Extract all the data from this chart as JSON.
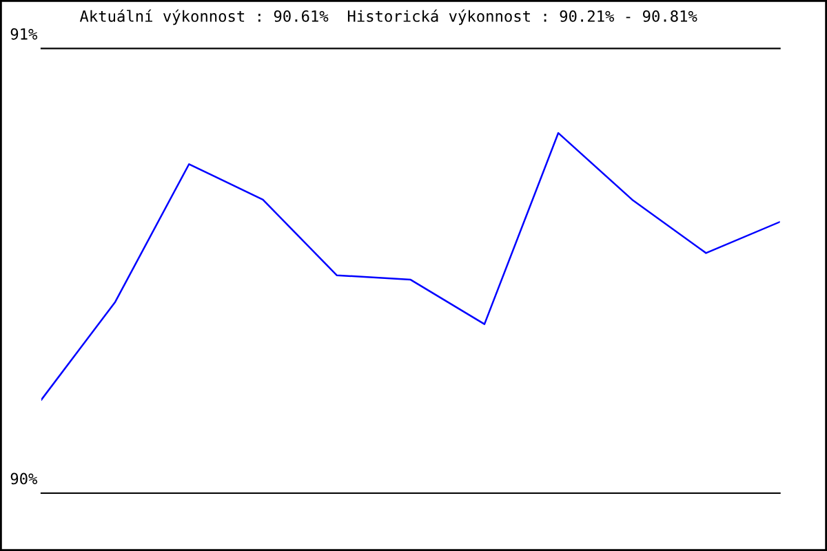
{
  "chart_data": {
    "type": "line",
    "title": "Aktuální výkonnost : 90.61%  Historická výkonnost : 90.21% - 90.81%",
    "categories": [
      null,
      null,
      null,
      null,
      null,
      null,
      null,
      null,
      null,
      null,
      null
    ],
    "series": [
      {
        "color": "#0000ff",
        "values": [
          90.21,
          90.43,
          90.74,
          90.66,
          90.49,
          90.48,
          90.38,
          90.81,
          90.66,
          90.54,
          90.61
        ]
      }
    ],
    "ylim": [
      90,
      91
    ],
    "yticks": [
      {
        "value": 90,
        "label": "90%"
      },
      {
        "value": 91,
        "label": "91%"
      }
    ],
    "grid": "y",
    "tick_labels": "y",
    "marker": "none",
    "line_style": "solid",
    "legend": false
  }
}
